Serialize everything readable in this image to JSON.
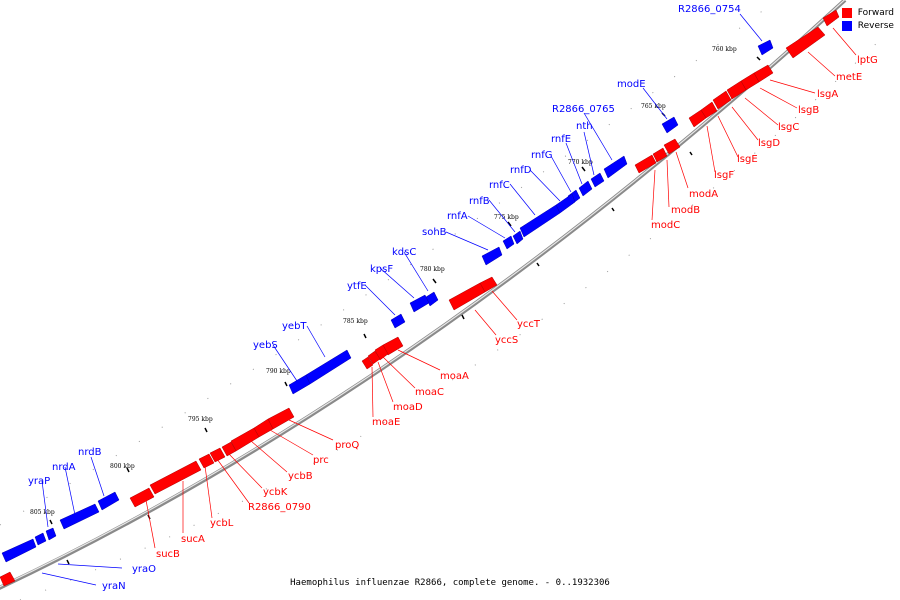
{
  "legend": {
    "forward_label": "Forward",
    "reverse_label": "Reverse",
    "forward_color": "#ff0000",
    "reverse_color": "#0000ff"
  },
  "footer": "Haemophilus influenzae R2866, complete genome. - 0..1932306",
  "ticks": [
    "760 kbp",
    "765 kbp",
    "770 kbp",
    "775 kbp",
    "780 kbp",
    "785 kbp",
    "790 kbp",
    "795 kbp",
    "800 kbp",
    "805 kbp"
  ],
  "forward_genes": [
    "lptG",
    "metE",
    "lsgA",
    "lsgB",
    "lsgC",
    "lsgD",
    "lsgE",
    "lsgF",
    "modA",
    "modB",
    "modC",
    "yccT",
    "yccS",
    "moaA",
    "moaC",
    "moaD",
    "moaE",
    "proQ",
    "prc",
    "ycbB",
    "ycbK",
    "R2866_0790",
    "ycbL",
    "sucA",
    "sucB"
  ],
  "reverse_genes": [
    "R2866_0754",
    "modE",
    "R2866_0765",
    "nth",
    "rnfE",
    "rnfG",
    "rnfD",
    "rnfC",
    "rnfB",
    "rnfA",
    "sohB",
    "kdsC",
    "kpsF",
    "ytfE",
    "yebT",
    "yebS",
    "nrdB",
    "nrdA",
    "yraP",
    "yraO",
    "yraN"
  ]
}
